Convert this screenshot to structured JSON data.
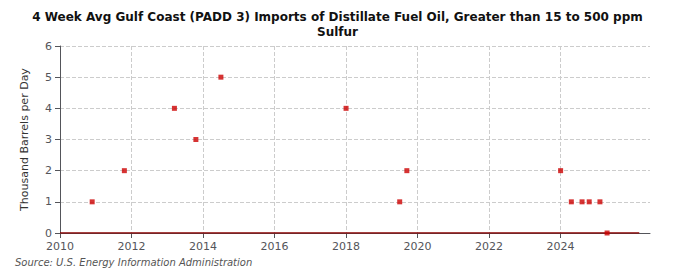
{
  "chart_data": {
    "type": "scatter",
    "title": "4 Week Avg Gulf Coast (PADD 3) Imports of Distillate Fuel Oil, Greater than 15 to 500 ppm\nSulfur",
    "ylabel": "Thousand Barrels per Day",
    "annotations": [
      "Source: U.S. Energy Information Administration"
    ],
    "xlim": [
      2010,
      2026.5
    ],
    "xticks": [
      2010,
      2012,
      2014,
      2016,
      2018,
      2020,
      2022,
      2024
    ],
    "ylim": [
      0,
      6
    ],
    "yticks": [
      0,
      1,
      2,
      3,
      4,
      5,
      6
    ],
    "grid": true,
    "series": [
      {
        "type": "line",
        "color": "#8B0000",
        "line_style": "solid",
        "x": [
          2010,
          2026.2
        ],
        "values": [
          0,
          0
        ]
      },
      {
        "type": "scatter",
        "color": "#cc0000",
        "marker": "square",
        "x": [
          2010.9,
          2011.8,
          2013.2,
          2013.8,
          2014.5,
          2018.0,
          2019.5,
          2019.7,
          2024.0,
          2024.3,
          2024.6,
          2024.8,
          2025.1,
          2025.3
        ],
        "values": [
          1,
          2,
          4,
          3,
          5,
          4,
          1,
          2,
          2,
          1,
          1,
          1,
          1,
          0
        ]
      }
    ]
  }
}
